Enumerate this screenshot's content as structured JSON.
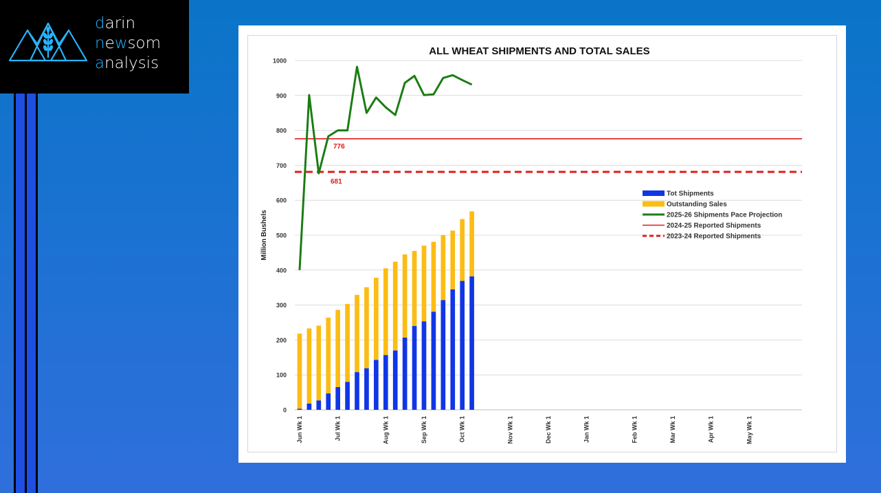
{
  "brand": {
    "line1_initial": "d",
    "line1_rest": "arin",
    "line2_initial": "n",
    "line2_mid": "e",
    "line2_w": "w",
    "line2_rest": "som",
    "line3_initial": "a",
    "line3_rest": "nalysis"
  },
  "colors": {
    "shipments": "#1036e6",
    "outstanding": "#fbbc14",
    "pace": "#1a7d13",
    "reported_2425": "#e11b1b",
    "reported_2324": "#e11b1b",
    "logo_accent": "#27b4ff"
  },
  "chart_data": {
    "type": "bar",
    "title": "ALL WHEAT SHIPMENTS AND TOTAL SALES",
    "ylabel": "Million Bushels",
    "xlabel": "",
    "ylim": [
      0,
      1000
    ],
    "yticks": [
      0,
      100,
      200,
      300,
      400,
      500,
      600,
      700,
      800,
      900,
      1000
    ],
    "total_weeks": 53,
    "x_ticks": [
      {
        "label": "Jun Wk 1",
        "week": 0
      },
      {
        "label": "Jul Wk 1",
        "week": 4
      },
      {
        "label": "Aug Wk 1",
        "week": 9
      },
      {
        "label": "Sep Wk 1",
        "week": 13
      },
      {
        "label": "Oct Wk 1",
        "week": 17
      },
      {
        "label": "Nov Wk 1",
        "week": 22
      },
      {
        "label": "Dec Wk 1",
        "week": 26
      },
      {
        "label": "Jan Wk 1",
        "week": 30
      },
      {
        "label": "Feb Wk 1",
        "week": 35
      },
      {
        "label": "Mar Wk 1",
        "week": 39
      },
      {
        "label": "Apr Wk 1",
        "week": 43
      },
      {
        "label": "May Wk 1",
        "week": 47
      }
    ],
    "series": [
      {
        "name": "Tot Shipments",
        "type": "stacked-bar",
        "values": [
          3,
          18,
          27,
          47,
          65,
          80,
          108,
          119,
          143,
          157,
          170,
          207,
          240,
          253,
          281,
          314,
          345,
          369,
          382
        ]
      },
      {
        "name": "Outstanding Sales",
        "type": "stacked-bar",
        "values": [
          215,
          215,
          214,
          217,
          221,
          223,
          221,
          232,
          235,
          248,
          254,
          238,
          215,
          217,
          200,
          186,
          168,
          177,
          186
        ]
      },
      {
        "name": "2025-26 Shipments Pace Projection",
        "type": "line",
        "values": [
          400,
          901,
          677,
          783,
          800,
          800,
          982,
          850,
          894,
          866,
          844,
          936,
          956,
          901,
          903,
          950,
          958,
          944,
          931
        ]
      },
      {
        "name": "2024-25 Reported Shipments",
        "type": "hline",
        "value": 776
      },
      {
        "name": "2023-24 Reported Shipments",
        "type": "hline-dashed",
        "value": 681
      }
    ],
    "annotations": [
      {
        "text": "776",
        "value": 776
      },
      {
        "text": "681",
        "value": 681
      }
    ],
    "legend_position": "right"
  }
}
